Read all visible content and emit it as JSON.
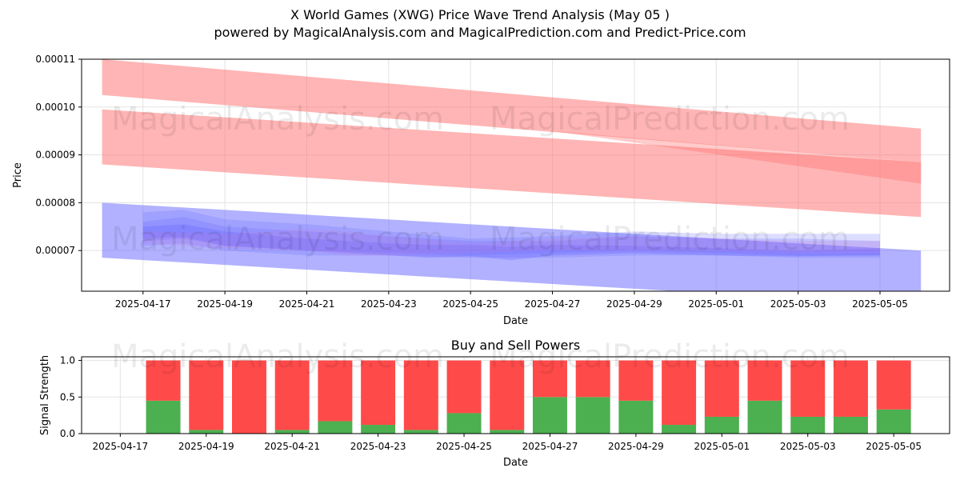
{
  "header": {
    "title": "X World Games (XWG) Price Wave Trend Analysis (May 05 )",
    "subtitle": "powered by MagicalAnalysis.com and MagicalPrediction.com and Predict-Price.com"
  },
  "watermarks": [
    "MagicalAnalysis.com",
    "MagicalPrediction.com"
  ],
  "colors": {
    "sell_band": "#ff6b6b",
    "buy_band": "#6464ff",
    "buy_bar": "#4caf50",
    "sell_bar": "#ff4a4a"
  },
  "chart_data": [
    {
      "type": "area",
      "title": "",
      "xlabel": "Date",
      "ylabel": "Price",
      "x_ticks": [
        "2025-04-17",
        "2025-04-19",
        "2025-04-21",
        "2025-04-23",
        "2025-04-25",
        "2025-04-27",
        "2025-04-29",
        "2025-05-01",
        "2025-05-03",
        "2025-05-05"
      ],
      "y_ticks": [
        "0.00007",
        "0.00008",
        "0.00009",
        "0.00010",
        "0.00011"
      ],
      "xlim": [
        "2025-04-15",
        "2025-05-06"
      ],
      "ylim": [
        6.15e-05,
        0.00011
      ],
      "grid": true,
      "bands": [
        {
          "group": "sell",
          "opacity": 0.5,
          "x": [
            "2025-04-16",
            "2025-05-06"
          ],
          "upper": [
            0.00011,
            9.55e-05
          ],
          "lower": [
            0.0001025,
            8.85e-05
          ]
        },
        {
          "group": "sell",
          "opacity": 0.5,
          "x": [
            "2025-04-16",
            "2025-05-06"
          ],
          "upper": [
            9.95e-05,
            8.85e-05
          ],
          "lower": [
            8.8e-05,
            7.7e-05
          ]
        },
        {
          "group": "sell",
          "opacity": 0.35,
          "x": [
            "2025-04-27",
            "2025-05-06"
          ],
          "upper": [
            9.5e-05,
            8.85e-05
          ],
          "lower": [
            9.5e-05,
            8.4e-05
          ]
        },
        {
          "group": "buy",
          "opacity": 0.5,
          "x": [
            "2025-04-16",
            "2025-05-06"
          ],
          "upper": [
            8e-05,
            7e-05
          ],
          "lower": [
            6.85e-05,
            5.85e-05
          ]
        },
        {
          "group": "buy",
          "opacity": 0.22,
          "x": [
            "2025-04-17",
            "2025-04-18",
            "2025-04-19",
            "2025-04-21",
            "2025-04-23",
            "2025-04-25",
            "2025-04-27",
            "2025-04-29",
            "2025-05-01",
            "2025-05-03",
            "2025-05-05"
          ],
          "upper": [
            7.8e-05,
            7.85e-05,
            7.65e-05,
            7.55e-05,
            7.4e-05,
            7.25e-05,
            7.3e-05,
            7.4e-05,
            7.35e-05,
            7.35e-05,
            7.35e-05
          ],
          "lower": [
            7.1e-05,
            7.15e-05,
            7e-05,
            6.9e-05,
            6.9e-05,
            6.85e-05,
            6.85e-05,
            6.9e-05,
            6.9e-05,
            6.85e-05,
            6.85e-05
          ]
        },
        {
          "group": "buy",
          "opacity": 0.22,
          "x": [
            "2025-04-17",
            "2025-04-18",
            "2025-04-19",
            "2025-04-21",
            "2025-04-23",
            "2025-04-25",
            "2025-04-27",
            "2025-04-29",
            "2025-05-01",
            "2025-05-03",
            "2025-05-05"
          ],
          "upper": [
            7.6e-05,
            7.7e-05,
            7.5e-05,
            7.4e-05,
            7.3e-05,
            7.2e-05,
            7.2e-05,
            7.3e-05,
            7.25e-05,
            7.25e-05,
            7.2e-05
          ],
          "lower": [
            7.2e-05,
            7.25e-05,
            7.1e-05,
            7e-05,
            6.95e-05,
            6.9e-05,
            6.95e-05,
            7e-05,
            6.95e-05,
            6.9e-05,
            6.9e-05
          ]
        },
        {
          "group": "buy",
          "opacity": 0.3,
          "x": [
            "2025-04-17",
            "2025-04-18",
            "2025-04-19",
            "2025-04-21",
            "2025-04-23",
            "2025-04-24",
            "2025-04-25",
            "2025-04-26",
            "2025-04-27",
            "2025-04-29",
            "2025-05-01",
            "2025-05-03",
            "2025-05-05"
          ],
          "upper": [
            7.5e-05,
            7.55e-05,
            7.4e-05,
            7.25e-05,
            7.15e-05,
            7.12e-05,
            7.12e-05,
            7.08e-05,
            7.12e-05,
            7.1e-05,
            7.05e-05,
            7e-05,
            7.05e-05
          ],
          "lower": [
            7.25e-05,
            7.28e-05,
            7.1e-05,
            7e-05,
            6.9e-05,
            6.85e-05,
            6.88e-05,
            6.8e-05,
            6.9e-05,
            6.95e-05,
            6.9e-05,
            6.88e-05,
            6.9e-05
          ]
        },
        {
          "group": "mixed",
          "opacity": 0.2,
          "x": [
            "2025-04-17",
            "2025-04-19",
            "2025-04-21",
            "2025-04-22",
            "2025-04-23",
            "2025-04-25",
            "2025-04-27",
            "2025-04-29",
            "2025-05-01",
            "2025-05-03",
            "2025-05-05"
          ],
          "upper": [
            7.4e-05,
            7.35e-05,
            7.45e-05,
            7.4e-05,
            7.3e-05,
            7.15e-05,
            7.25e-05,
            7.3e-05,
            7.25e-05,
            7.2e-05,
            7.2e-05
          ],
          "lower": [
            7.15e-05,
            7.05e-05,
            7e-05,
            6.9e-05,
            6.9e-05,
            6.95e-05,
            7e-05,
            7e-05,
            6.98e-05,
            6.95e-05,
            6.95e-05
          ]
        }
      ]
    },
    {
      "type": "bar",
      "title": "Buy and Sell Powers",
      "xlabel": "Date",
      "ylabel": "Signal Strength",
      "x_ticks": [
        "2025-04-17",
        "2025-04-19",
        "2025-04-21",
        "2025-04-23",
        "2025-04-25",
        "2025-04-27",
        "2025-04-29",
        "2025-05-01",
        "2025-05-03",
        "2025-05-05"
      ],
      "y_ticks": [
        "0.0",
        "0.5",
        "1.0"
      ],
      "ylim": [
        0,
        1.05
      ],
      "grid": true,
      "categories": [
        "2025-04-18",
        "2025-04-19",
        "2025-04-20",
        "2025-04-21",
        "2025-04-22",
        "2025-04-23",
        "2025-04-24",
        "2025-04-25",
        "2025-04-26",
        "2025-04-27",
        "2025-04-28",
        "2025-04-29",
        "2025-04-30",
        "2025-05-01",
        "2025-05-02",
        "2025-05-03",
        "2025-05-04",
        "2025-05-05"
      ],
      "series": [
        {
          "key": "buy",
          "values": [
            0.45,
            0.05,
            0.0,
            0.05,
            0.17,
            0.12,
            0.05,
            0.28,
            0.05,
            0.5,
            0.5,
            0.45,
            0.12,
            0.23,
            0.45,
            0.23,
            0.23,
            0.33
          ]
        },
        {
          "key": "sell",
          "values": [
            0.55,
            0.95,
            1.0,
            0.95,
            0.83,
            0.88,
            0.95,
            0.72,
            0.95,
            0.5,
            0.5,
            0.55,
            0.88,
            0.77,
            0.55,
            0.77,
            0.77,
            0.67
          ]
        }
      ]
    }
  ]
}
